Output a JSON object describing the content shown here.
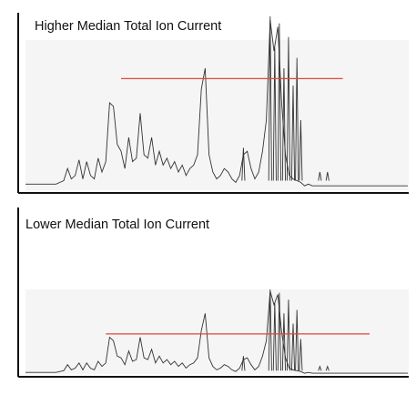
{
  "colors": {
    "background": "#ffffff",
    "plot_fill": "#f4f5f4",
    "trace": "#333333",
    "median_line": "#e0483c",
    "axis": "#111111"
  },
  "chart_data": [
    {
      "type": "line",
      "title": "Higher Median Total Ion Current",
      "xlabel": "",
      "ylabel": "",
      "xlim": [
        0,
        100
      ],
      "ylim": [
        0,
        100
      ],
      "grid": false,
      "median": {
        "value": 64,
        "x_start": 25,
        "x_end": 83
      },
      "x": [
        0,
        1,
        2,
        3,
        4,
        5,
        6,
        7,
        8,
        9,
        10,
        11,
        12,
        13,
        14,
        15,
        16,
        17,
        18,
        19,
        20,
        21,
        22,
        23,
        24,
        25,
        26,
        27,
        28,
        29,
        30,
        31,
        32,
        33,
        34,
        35,
        36,
        37,
        38,
        39,
        40,
        41,
        42,
        43,
        44,
        45,
        46,
        47,
        48,
        49,
        50,
        51,
        52,
        53,
        54,
        55,
        56,
        57,
        58,
        59,
        60,
        61,
        62,
        63,
        64,
        65,
        66,
        67,
        68,
        69,
        70,
        71,
        72,
        73,
        74,
        75,
        76,
        77,
        78,
        79,
        80,
        81,
        82,
        83,
        84,
        85,
        86,
        87,
        88,
        89,
        90,
        91,
        92,
        93,
        94,
        95,
        96,
        97,
        98,
        99,
        100
      ],
      "y": [
        3,
        3,
        3,
        3,
        3,
        3,
        3,
        3,
        3,
        4,
        5,
        12,
        6,
        8,
        17,
        6,
        16,
        8,
        6,
        18,
        10,
        16,
        50,
        48,
        26,
        22,
        12,
        30,
        16,
        18,
        44,
        20,
        18,
        30,
        14,
        22,
        14,
        18,
        12,
        16,
        10,
        14,
        8,
        12,
        14,
        20,
        58,
        70,
        20,
        10,
        6,
        8,
        12,
        10,
        6,
        4,
        8,
        20,
        22,
        12,
        6,
        10,
        22,
        40,
        98,
        80,
        94,
        50,
        20,
        8,
        6,
        5,
        4,
        2,
        3,
        2,
        2,
        2,
        2,
        2,
        2,
        2,
        2,
        2,
        2,
        2,
        2,
        2,
        2,
        2,
        2,
        2,
        2,
        2,
        2,
        2,
        2,
        2,
        2,
        2,
        2
      ],
      "spikes": [
        {
          "x": 64,
          "y": 100
        },
        {
          "x": 65.2,
          "y": 82
        },
        {
          "x": 66.4,
          "y": 96
        },
        {
          "x": 67.6,
          "y": 70
        },
        {
          "x": 68.8,
          "y": 88
        },
        {
          "x": 70,
          "y": 60
        },
        {
          "x": 71,
          "y": 76
        },
        {
          "x": 72,
          "y": 40
        },
        {
          "x": 57,
          "y": 24
        },
        {
          "x": 77,
          "y": 10
        },
        {
          "x": 79,
          "y": 10
        }
      ]
    },
    {
      "type": "line",
      "title": "Lower Median Total Ion Current",
      "xlabel": "",
      "ylabel": "",
      "xlim": [
        0,
        100
      ],
      "ylim": [
        0,
        100
      ],
      "grid": false,
      "median": {
        "value": 48,
        "x_start": 21,
        "x_end": 90
      },
      "x": [
        0,
        1,
        2,
        3,
        4,
        5,
        6,
        7,
        8,
        9,
        10,
        11,
        12,
        13,
        14,
        15,
        16,
        17,
        18,
        19,
        20,
        21,
        22,
        23,
        24,
        25,
        26,
        27,
        28,
        29,
        30,
        31,
        32,
        33,
        34,
        35,
        36,
        37,
        38,
        39,
        40,
        41,
        42,
        43,
        44,
        45,
        46,
        47,
        48,
        49,
        50,
        51,
        52,
        53,
        54,
        55,
        56,
        57,
        58,
        59,
        60,
        61,
        62,
        63,
        64,
        65,
        66,
        67,
        68,
        69,
        70,
        71,
        72,
        73,
        74,
        75,
        76,
        77,
        78,
        79,
        80,
        81,
        82,
        83,
        84,
        85,
        86,
        87,
        88,
        89,
        90,
        91,
        92,
        93,
        94,
        95,
        96,
        97,
        98,
        99,
        100
      ],
      "y": [
        3,
        3,
        3,
        3,
        3,
        3,
        3,
        3,
        3,
        4,
        5,
        12,
        6,
        8,
        14,
        6,
        14,
        8,
        6,
        16,
        10,
        14,
        44,
        40,
        22,
        20,
        12,
        28,
        16,
        18,
        44,
        20,
        18,
        30,
        14,
        22,
        14,
        18,
        12,
        16,
        10,
        14,
        8,
        12,
        14,
        20,
        52,
        72,
        20,
        10,
        6,
        8,
        12,
        10,
        6,
        4,
        8,
        18,
        20,
        12,
        6,
        10,
        22,
        40,
        98,
        82,
        94,
        50,
        20,
        8,
        6,
        5,
        4,
        2,
        3,
        2,
        2,
        2,
        2,
        2,
        2,
        2,
        2,
        2,
        2,
        2,
        2,
        2,
        2,
        2,
        2,
        2,
        2,
        2,
        2,
        2,
        2,
        2,
        2,
        2,
        2
      ],
      "spikes": [
        {
          "x": 64,
          "y": 100
        },
        {
          "x": 65.2,
          "y": 84
        },
        {
          "x": 66.4,
          "y": 96
        },
        {
          "x": 67.6,
          "y": 72
        },
        {
          "x": 68.8,
          "y": 88
        },
        {
          "x": 70,
          "y": 60
        },
        {
          "x": 71,
          "y": 76
        },
        {
          "x": 72,
          "y": 42
        },
        {
          "x": 57,
          "y": 22
        },
        {
          "x": 77,
          "y": 10
        },
        {
          "x": 79,
          "y": 10
        }
      ]
    }
  ]
}
